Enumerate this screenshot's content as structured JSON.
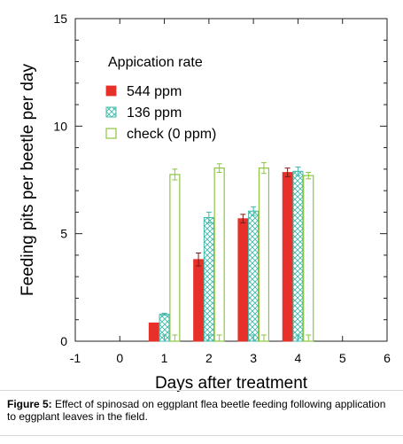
{
  "chart_data": {
    "type": "bar",
    "title": "",
    "xlabel": "Days after treatment",
    "ylabel": "Feeding pits per beetle per day",
    "xlim": [
      -1,
      6
    ],
    "ylim": [
      0,
      15
    ],
    "xticks": [
      "-1",
      "0",
      "1",
      "2",
      "3",
      "4",
      "5",
      "6"
    ],
    "yticks": [
      "0",
      "5",
      "10",
      "15"
    ],
    "legend_title": "Appication rate",
    "legend_position": "top-left",
    "x": [
      0,
      1,
      2,
      3,
      4
    ],
    "series": [
      {
        "name": "544 ppm",
        "style": "solid",
        "color": "#e8302a",
        "values": [
          0.0,
          0.85,
          3.8,
          5.7,
          7.85
        ],
        "errors": [
          0.0,
          0.0,
          0.3,
          0.2,
          0.2
        ]
      },
      {
        "name": "136 ppm",
        "style": "crosshatch",
        "color": "#3fb8a8",
        "values": [
          0.0,
          1.25,
          5.75,
          6.05,
          7.9
        ],
        "errors": [
          0.0,
          0.05,
          0.25,
          0.2,
          0.2
        ]
      },
      {
        "name": "check (0 ppm)",
        "style": "hollow",
        "color": "#8cc63f",
        "values": [
          0.0,
          7.75,
          8.05,
          8.05,
          7.7
        ],
        "errors": [
          0.0,
          0.25,
          0.2,
          0.25,
          0.15
        ]
      }
    ]
  },
  "caption": {
    "label": "Figure 5:",
    "text": " Effect of spinosad on eggplant flea beetle feeding following application to eggplant leaves in the field."
  }
}
